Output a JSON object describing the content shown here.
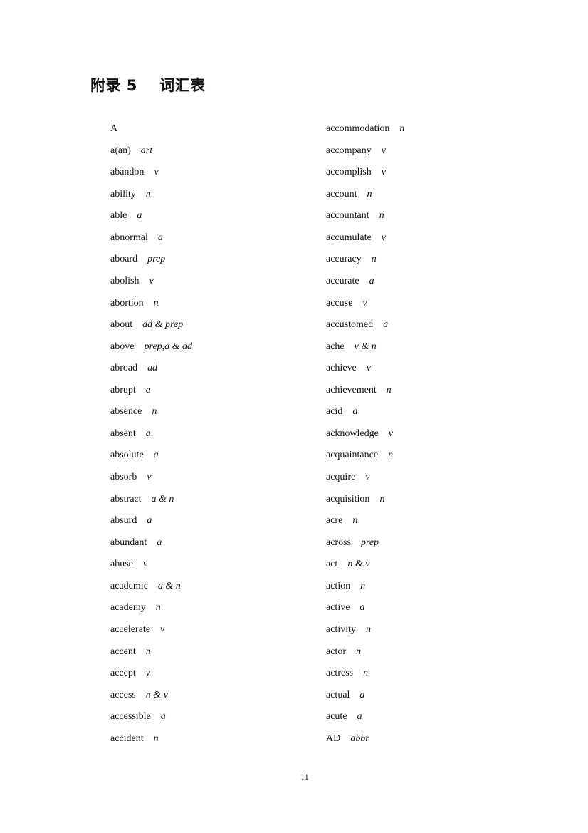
{
  "title": "附录 5    词汇表",
  "left_column": [
    {
      "word": "A",
      "pos": ""
    },
    {
      "word": "a(an)",
      "pos": "art"
    },
    {
      "word": "abandon",
      "pos": "v"
    },
    {
      "word": "ability",
      "pos": "n"
    },
    {
      "word": "able",
      "pos": "a"
    },
    {
      "word": "abnormal",
      "pos": "a"
    },
    {
      "word": "aboard",
      "pos": "prep"
    },
    {
      "word": "abolish",
      "pos": "v"
    },
    {
      "word": "abortion",
      "pos": "n"
    },
    {
      "word": "about",
      "pos": "ad & prep"
    },
    {
      "word": "above",
      "pos": "prep,a & ad"
    },
    {
      "word": "abroad",
      "pos": "ad"
    },
    {
      "word": "abrupt",
      "pos": "a"
    },
    {
      "word": "absence",
      "pos": "n"
    },
    {
      "word": "absent",
      "pos": "a"
    },
    {
      "word": "absolute",
      "pos": "a"
    },
    {
      "word": "absorb",
      "pos": "v"
    },
    {
      "word": "abstract",
      "pos": "a & n"
    },
    {
      "word": "absurd",
      "pos": "a"
    },
    {
      "word": "abundant",
      "pos": "a"
    },
    {
      "word": "abuse",
      "pos": "v"
    },
    {
      "word": "academic",
      "pos": "a & n"
    },
    {
      "word": "academy",
      "pos": "n"
    },
    {
      "word": "accelerate",
      "pos": "v"
    },
    {
      "word": "accent",
      "pos": "n"
    },
    {
      "word": "accept",
      "pos": "v"
    },
    {
      "word": "access",
      "pos": "n & v"
    },
    {
      "word": "accessible",
      "pos": "a"
    },
    {
      "word": "accident",
      "pos": "n"
    }
  ],
  "right_column": [
    {
      "word": "accommodation",
      "pos": "n"
    },
    {
      "word": "accompany",
      "pos": "v"
    },
    {
      "word": "accomplish",
      "pos": "v"
    },
    {
      "word": "account",
      "pos": "n"
    },
    {
      "word": "accountant",
      "pos": "n"
    },
    {
      "word": "accumulate",
      "pos": "v"
    },
    {
      "word": "accuracy",
      "pos": "n"
    },
    {
      "word": "accurate",
      "pos": "a"
    },
    {
      "word": "accuse",
      "pos": "v"
    },
    {
      "word": "accustomed",
      "pos": "a"
    },
    {
      "word": "ache",
      "pos": "v & n"
    },
    {
      "word": "achieve",
      "pos": "v"
    },
    {
      "word": "achievement",
      "pos": "n"
    },
    {
      "word": "acid",
      "pos": "a"
    },
    {
      "word": "acknowledge",
      "pos": "v"
    },
    {
      "word": "acquaintance",
      "pos": "n"
    },
    {
      "word": "acquire",
      "pos": "v"
    },
    {
      "word": "acquisition",
      "pos": "n"
    },
    {
      "word": "acre",
      "pos": "n"
    },
    {
      "word": "across",
      "pos": "prep"
    },
    {
      "word": "act",
      "pos": "n & v"
    },
    {
      "word": "action",
      "pos": "n"
    },
    {
      "word": "active",
      "pos": "a"
    },
    {
      "word": "activity",
      "pos": "n"
    },
    {
      "word": "actor",
      "pos": "n"
    },
    {
      "word": "actress",
      "pos": "n"
    },
    {
      "word": "actual",
      "pos": "a"
    },
    {
      "word": "acute",
      "pos": "a"
    },
    {
      "word": "AD",
      "pos": "abbr"
    }
  ],
  "page_number": "11"
}
